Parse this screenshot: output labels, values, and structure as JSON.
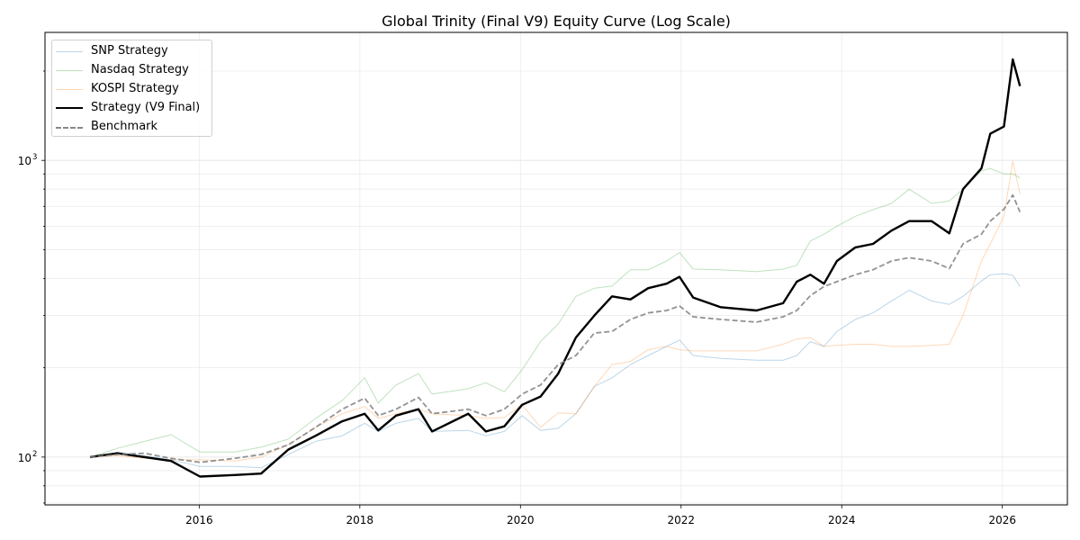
{
  "chart_data": {
    "type": "line",
    "title": "Global Trinity (Final V9) Equity Curve (Log Scale)",
    "xlabel": "",
    "ylabel": "",
    "yscale": "log",
    "xlim": [
      2014.08,
      2026.81
    ],
    "ylim": [
      69,
      2700
    ],
    "x_ticks": [
      2016,
      2018,
      2020,
      2022,
      2024,
      2026
    ],
    "y_ticks": [
      {
        "value": 100,
        "label": "10",
        "exp": "2"
      },
      {
        "value": 1000,
        "label": "10",
        "exp": "3"
      }
    ],
    "grid": true,
    "legend_position": "top-left",
    "x": [
      2014.64,
      2014.98,
      2015.32,
      2015.65,
      2016.01,
      2016.44,
      2016.77,
      2017.11,
      2017.45,
      2017.78,
      2018.06,
      2018.23,
      2018.45,
      2018.73,
      2018.9,
      2019.35,
      2019.57,
      2019.8,
      2020.02,
      2020.25,
      2020.47,
      2020.69,
      2020.92,
      2021.14,
      2021.37,
      2021.59,
      2021.82,
      2021.98,
      2022.15,
      2022.49,
      2022.94,
      2023.27,
      2023.44,
      2023.61,
      2023.78,
      2023.94,
      2024.17,
      2024.39,
      2024.62,
      2024.84,
      2025.12,
      2025.34,
      2025.51,
      2025.74,
      2025.85,
      2026.02,
      2026.13,
      2026.22
    ],
    "series": [
      {
        "name": "SNP Strategy",
        "color": "#1f77b4",
        "opacity": 0.3,
        "width": 1,
        "dash": false,
        "values": [
          100,
          103,
          101,
          98,
          93,
          93,
          92,
          102,
          113,
          118,
          130,
          122,
          130,
          135,
          122,
          123,
          118,
          122,
          138,
          123,
          125,
          140,
          173,
          185,
          205,
          220,
          236,
          248,
          220,
          215,
          212,
          212,
          220,
          245,
          236,
          265,
          291,
          306,
          336,
          365,
          336,
          327,
          348,
          392,
          412,
          415,
          410,
          376
        ]
      },
      {
        "name": "Nasdaq Strategy",
        "color": "#2ca02c",
        "opacity": 0.3,
        "width": 1,
        "dash": false,
        "values": [
          100,
          107,
          113,
          119,
          104,
          104,
          108,
          115,
          135,
          155,
          185,
          152,
          175,
          191,
          163,
          170,
          178,
          166,
          197,
          245,
          281,
          348,
          371,
          377,
          428,
          428,
          458,
          489,
          430,
          428,
          422,
          430,
          443,
          535,
          564,
          600,
          648,
          682,
          716,
          800,
          716,
          730,
          800,
          922,
          940,
          900,
          900,
          873
        ]
      },
      {
        "name": "KOSPI Strategy",
        "color": "#ff7f0e",
        "opacity": 0.3,
        "width": 1,
        "dash": false,
        "values": [
          100,
          101,
          99,
          98,
          98,
          97,
          100,
          110,
          126,
          140,
          148,
          135,
          140,
          145,
          140,
          138,
          135,
          136,
          150,
          126,
          141,
          140,
          173,
          205,
          210,
          230,
          236,
          230,
          228,
          228,
          228,
          240,
          250,
          253,
          236,
          238,
          240,
          240,
          236,
          236,
          238,
          240,
          300,
          458,
          523,
          648,
          993,
          772
        ]
      },
      {
        "name": "Strategy (V9 Final)",
        "color": "#000000",
        "opacity": 1,
        "width": 2.4,
        "dash": false,
        "values": [
          100,
          103,
          100,
          97,
          86,
          87,
          88,
          106,
          118,
          132,
          140,
          123,
          138,
          145,
          122,
          140,
          122,
          127,
          150,
          160,
          191,
          253,
          300,
          348,
          340,
          371,
          384,
          405,
          345,
          320,
          312,
          330,
          390,
          412,
          384,
          458,
          509,
          523,
          580,
          624,
          624,
          568,
          800,
          940,
          1230,
          1300,
          2190,
          1780
        ]
      },
      {
        "name": "Benchmark",
        "color": "#808080",
        "opacity": 0.85,
        "width": 1.8,
        "dash": true,
        "values": [
          100,
          102,
          103,
          99,
          96,
          99,
          102,
          110,
          126,
          145,
          158,
          138,
          145,
          159,
          140,
          145,
          138,
          145,
          163,
          175,
          205,
          220,
          262,
          265,
          291,
          306,
          312,
          323,
          297,
          291,
          285,
          297,
          312,
          350,
          376,
          390,
          412,
          428,
          458,
          470,
          458,
          432,
          523,
          564,
          624,
          685,
          764,
          670
        ]
      }
    ]
  }
}
